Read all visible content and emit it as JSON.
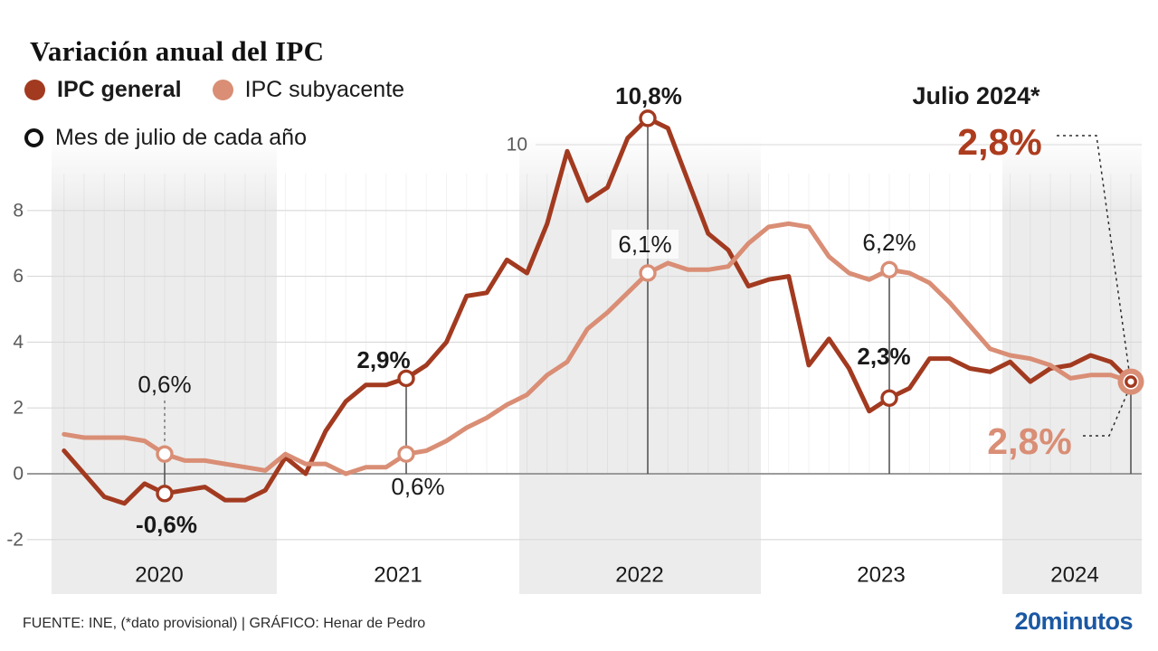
{
  "title": "Variación anual del IPC",
  "legend": {
    "items": [
      {
        "label": "IPC general",
        "bold": true,
        "swatch": "general"
      },
      {
        "label": "IPC subyacente",
        "bold": false,
        "swatch": "subyacente"
      }
    ],
    "marker_note": "Mes de julio de cada año"
  },
  "colors": {
    "general": "#A23A20",
    "subyacente": "#D98E75",
    "big_general_label": "#AD3C1E",
    "band": "#ECECEC",
    "grid": "#D9D9D9",
    "zero_line": "#8E8E8E",
    "logo_blue": "#1B58A3",
    "text": "#1A1A1A",
    "tick_text": "#5A5A5A"
  },
  "chart_data": {
    "type": "line",
    "title": "Variación anual del IPC",
    "unit": "%",
    "x_unit": "month",
    "x_range": [
      "2020-02",
      "2024-07"
    ],
    "y_ticks": [
      -2,
      0,
      2,
      4,
      6,
      8,
      10
    ],
    "ylim": [
      -2.7,
      11.6
    ],
    "grid": "horizontal gridlines + faint monthly vertical gridlines",
    "legend_position": "top-left",
    "year_labels": [
      "2020",
      "2021",
      "2022",
      "2023",
      "2024"
    ],
    "shaded_year_bands": [
      "2020",
      "2022",
      "2024"
    ],
    "series": [
      {
        "name": "IPC general",
        "color": "#A23A20",
        "values": [
          0.7,
          0.0,
          -0.7,
          -0.9,
          -0.3,
          -0.6,
          -0.5,
          -0.4,
          -0.8,
          -0.8,
          -0.5,
          0.5,
          0.0,
          1.3,
          2.2,
          2.7,
          2.7,
          2.9,
          3.3,
          4.0,
          5.4,
          5.5,
          6.5,
          6.1,
          7.6,
          9.8,
          8.3,
          8.7,
          10.2,
          10.8,
          10.5,
          8.9,
          7.3,
          6.8,
          5.7,
          5.9,
          6.0,
          3.3,
          4.1,
          3.2,
          1.9,
          2.3,
          2.6,
          3.5,
          3.5,
          3.2,
          3.1,
          3.4,
          2.8,
          3.2,
          3.3,
          3.6,
          3.4,
          2.8
        ]
      },
      {
        "name": "IPC subyacente",
        "color": "#D98E75",
        "values": [
          1.2,
          1.1,
          1.1,
          1.1,
          1.0,
          0.6,
          0.4,
          0.4,
          0.3,
          0.2,
          0.1,
          0.6,
          0.3,
          0.3,
          0.0,
          0.2,
          0.2,
          0.6,
          0.7,
          1.0,
          1.4,
          1.7,
          2.1,
          2.4,
          3.0,
          3.4,
          4.4,
          4.9,
          5.5,
          6.1,
          6.4,
          6.2,
          6.2,
          6.3,
          7.0,
          7.5,
          7.6,
          7.5,
          6.6,
          6.1,
          5.9,
          6.2,
          6.1,
          5.8,
          5.2,
          4.5,
          3.8,
          3.6,
          3.5,
          3.3,
          2.9,
          3.0,
          3.0,
          2.8
        ]
      }
    ],
    "july_annotations": [
      {
        "year": "2020",
        "general": "-0,6%",
        "subyacente": "0,6%"
      },
      {
        "year": "2021",
        "general": "2,9%",
        "subyacente": "0,6%"
      },
      {
        "year": "2022",
        "general": "10,8%",
        "subyacente": "6,1%"
      },
      {
        "year": "2023",
        "general": "2,3%",
        "subyacente": "6,2%"
      },
      {
        "year": "2024",
        "title": "Julio 2024*",
        "general": "2,8%",
        "subyacente": "2,8%"
      }
    ]
  },
  "footer": {
    "source": "FUENTE: INE, (*dato provisional)  |  GRÁFICO: Henar de Pedro",
    "logo": "20minutos"
  }
}
